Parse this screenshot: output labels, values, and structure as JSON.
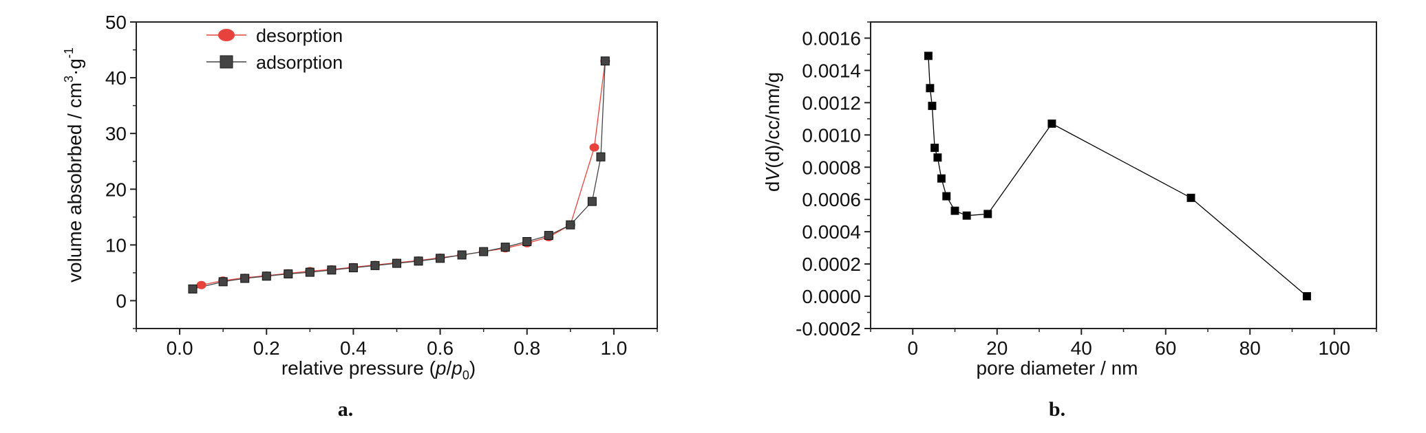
{
  "chart_data": [
    {
      "type": "line",
      "panel_label": "a.",
      "xlabel": "relative pressure (p/p0)",
      "xlabel_parts": {
        "pre": "relative pressure (",
        "p": "p",
        "slash": "/",
        "p0": "p",
        "sub": "0",
        "post": ")"
      },
      "ylabel": "volume absobrbed / cm3·g-1",
      "ylabel_parts": {
        "main": "volume absobrbed / cm",
        "sup1": "3",
        "dot": "·g",
        "sup2": "-1"
      },
      "xlim": [
        -0.1,
        1.1
      ],
      "ylim": [
        -5,
        50
      ],
      "xticks": [
        "0.0",
        "0.2",
        "0.4",
        "0.6",
        "0.8",
        "1.0"
      ],
      "yticks": [
        "0",
        "10",
        "20",
        "30",
        "40",
        "50"
      ],
      "legend_position": "top-left",
      "series": [
        {
          "name": "desorption",
          "color": "#e8423c",
          "marker": "circle",
          "x": [
            0.05,
            0.1,
            0.15,
            0.2,
            0.25,
            0.3,
            0.35,
            0.4,
            0.45,
            0.5,
            0.55,
            0.6,
            0.65,
            0.7,
            0.75,
            0.8,
            0.85,
            0.9,
            0.955,
            0.98
          ],
          "y": [
            2.8,
            3.6,
            4.1,
            4.5,
            4.9,
            5.3,
            5.6,
            6.0,
            6.4,
            6.8,
            7.2,
            7.7,
            8.2,
            8.8,
            9.4,
            10.3,
            11.4,
            13.6,
            27.5,
            43.0
          ]
        },
        {
          "name": "adsorption",
          "color": "#444444",
          "marker": "square",
          "x": [
            0.03,
            0.1,
            0.15,
            0.2,
            0.25,
            0.3,
            0.35,
            0.4,
            0.45,
            0.5,
            0.55,
            0.6,
            0.65,
            0.7,
            0.75,
            0.8,
            0.85,
            0.9,
            0.95,
            0.97,
            0.98
          ],
          "y": [
            2.1,
            3.4,
            4.0,
            4.4,
            4.8,
            5.1,
            5.5,
            5.9,
            6.3,
            6.7,
            7.1,
            7.6,
            8.2,
            8.8,
            9.6,
            10.6,
            11.7,
            13.6,
            17.8,
            25.8,
            43.0
          ]
        }
      ]
    },
    {
      "type": "line",
      "panel_label": "b.",
      "xlabel": "pore diameter / nm",
      "ylabel": "dV(d)/cc/nm/g",
      "ylabel_parts": {
        "pre": "d",
        "italic": "V",
        "post": "(d)/cc/nm/g"
      },
      "xlim": [
        -10,
        110
      ],
      "ylim": [
        -0.0002,
        0.0017
      ],
      "xticks": [
        "0",
        "20",
        "40",
        "60",
        "80",
        "100"
      ],
      "yticks": [
        "-0.0002",
        "0.0000",
        "0.0002",
        "0.0004",
        "0.0006",
        "0.0008",
        "0.0010",
        "0.0012",
        "0.0014",
        "0.0016"
      ],
      "series": [
        {
          "color": "#000000",
          "marker": "square",
          "x": [
            3.7,
            4.1,
            4.6,
            5.2,
            5.9,
            6.8,
            8.0,
            10.0,
            12.8,
            17.8,
            33.0,
            66.0,
            93.5
          ],
          "y": [
            0.00149,
            0.00129,
            0.00118,
            0.00092,
            0.00086,
            0.00073,
            0.00062,
            0.00053,
            0.0005,
            0.00051,
            0.00107,
            0.00061,
            0.0
          ]
        }
      ]
    }
  ]
}
